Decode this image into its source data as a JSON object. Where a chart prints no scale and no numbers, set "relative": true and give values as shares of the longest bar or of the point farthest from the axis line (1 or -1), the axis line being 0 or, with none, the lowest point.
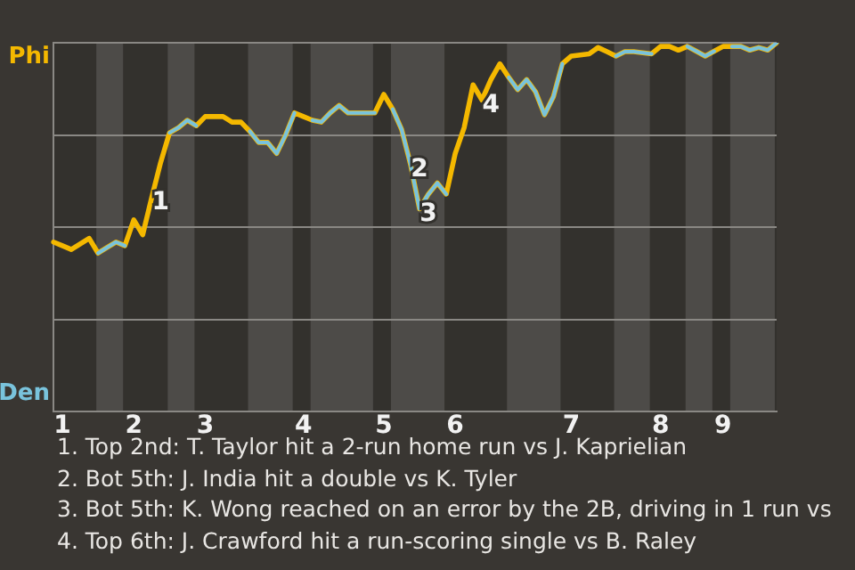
{
  "chart_data": {
    "type": "line",
    "relative": true,
    "categories": [
      null,
      "1",
      null,
      null,
      null,
      null,
      null,
      null,
      null,
      "2",
      null,
      null,
      null,
      null,
      null,
      null,
      null,
      "3",
      null,
      null,
      null,
      null,
      null,
      null,
      null,
      null,
      null,
      null,
      "4",
      null,
      null,
      null,
      null,
      null,
      null,
      null,
      null,
      "5",
      null,
      null,
      null,
      null,
      null,
      null,
      null,
      "6",
      null,
      null,
      null,
      null,
      null,
      null,
      null,
      null,
      null,
      null,
      null,
      null,
      "7",
      null,
      null,
      null,
      null,
      null,
      null,
      null,
      null,
      null,
      "8",
      null,
      null,
      null,
      null,
      null,
      null,
      "9",
      null,
      null,
      null,
      null,
      null,
      null
    ],
    "series": [
      {
        "color": "#f4b800",
        "values": [
          0.46,
          0.45,
          0.44,
          0.455,
          0.47,
          0.43,
          0.445,
          0.46,
          0.45,
          0.52,
          0.48,
          0.58,
          0.675,
          0.756,
          0.77,
          0.79,
          0.775,
          0.8,
          0.8,
          0.8,
          0.785,
          0.785,
          0.76,
          0.73,
          0.73,
          0.7,
          0.75,
          0.81,
          0.8,
          0.79,
          0.785,
          0.81,
          0.83,
          0.81,
          0.81,
          0.81,
          0.81,
          0.86,
          0.82,
          0.765,
          0.67,
          0.55,
          0.59,
          0.62,
          0.59,
          0.7,
          0.77,
          0.886,
          0.845,
          0.9,
          0.943,
          0.906,
          0.873,
          0.9,
          0.867,
          0.805,
          0.854,
          0.943,
          0.964,
          0.967,
          0.97,
          0.987,
          0.976,
          0.964,
          0.976,
          0.976,
          0.973,
          0.97,
          0.99,
          0.99,
          0.98,
          0.99,
          0.977,
          0.964,
          0.977,
          0.99,
          0.99,
          0.99,
          0.98,
          0.987,
          0.98,
          1.0
        ]
      },
      {
        "color": "#79c3dc",
        "values": [
          null,
          null,
          null,
          null,
          null,
          0.43,
          0.445,
          0.46,
          0.45,
          null,
          null,
          null,
          null,
          0.756,
          0.77,
          0.79,
          0.775,
          null,
          null,
          null,
          null,
          null,
          0.76,
          0.73,
          0.73,
          0.7,
          0.75,
          0.81,
          null,
          0.79,
          0.785,
          0.81,
          0.83,
          0.81,
          0.81,
          0.81,
          0.81,
          null,
          0.82,
          0.765,
          0.67,
          0.55,
          0.59,
          0.62,
          0.59,
          null,
          null,
          null,
          null,
          null,
          null,
          0.906,
          0.873,
          0.9,
          0.867,
          0.805,
          0.854,
          0.943,
          null,
          null,
          null,
          null,
          null,
          0.964,
          0.976,
          0.976,
          0.973,
          0.97,
          null,
          null,
          null,
          0.99,
          0.977,
          0.964,
          0.977,
          null,
          0.99,
          0.99,
          0.98,
          0.987,
          0.98,
          1.0
        ]
      }
    ],
    "grid": "y",
    "legend": false,
    "marker": "none",
    "line_style": "solid",
    "annotations": [
      {
        "text": "1",
        "y": 0.58
      },
      {
        "text": "2",
        "y": 0.67
      },
      {
        "text": "3",
        "y": 0.55
      },
      {
        "text": "4",
        "y": 0.845
      },
      "Phi",
      "Den",
      "1. Top 2nd: T. Taylor hit a 2-run home run vs J. Kaprielian",
      "2. Bot 5th: J. India hit a double vs K. Tyler",
      "3. Bot 5th: K. Wong reached on an error by the 2B, driving in 1 run vs",
      "4. Top 6th: J. Crawford hit a run-scoring single vs B. Raley"
    ]
  }
}
